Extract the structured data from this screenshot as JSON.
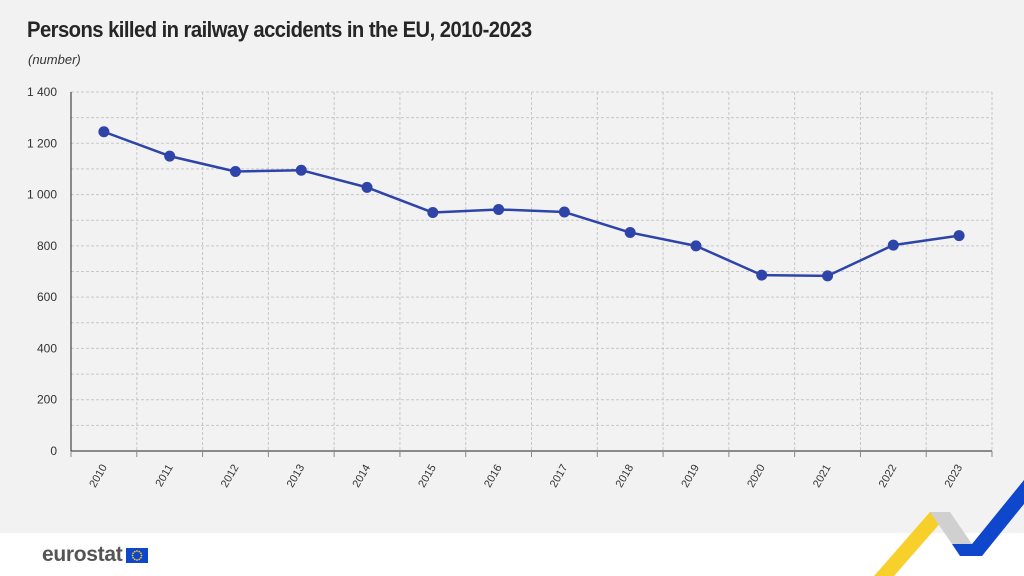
{
  "title": "Persons killed in railway accidents in the EU, 2010-2023",
  "subtitle": "(number)",
  "footer": {
    "logo_text": "eurostat"
  },
  "colors": {
    "line": "#2e44a8",
    "grid": "#c8c8c8",
    "background": "#f2f2f2",
    "accent_yellow": "#f7cb15",
    "accent_blue": "#0e47cb"
  },
  "chart_data": {
    "type": "line",
    "title": "Persons killed in railway accidents in the EU, 2010-2023",
    "subtitle": "(number)",
    "categories": [
      "2010",
      "2011",
      "2012",
      "2013",
      "2014",
      "2015",
      "2016",
      "2017",
      "2018",
      "2019",
      "2020",
      "2021",
      "2022",
      "2023"
    ],
    "values": [
      1245,
      1150,
      1090,
      1095,
      1028,
      930,
      942,
      932,
      852,
      800,
      686,
      683,
      803,
      840
    ],
    "ylim": [
      0,
      1400
    ],
    "yticks": [
      0,
      200,
      400,
      600,
      800,
      1000,
      1200,
      1400
    ],
    "ytick_labels": [
      "0",
      "200",
      "400",
      "600",
      "800",
      "1 000",
      "1 200",
      "1 400"
    ],
    "grid": true,
    "legend": "none"
  }
}
